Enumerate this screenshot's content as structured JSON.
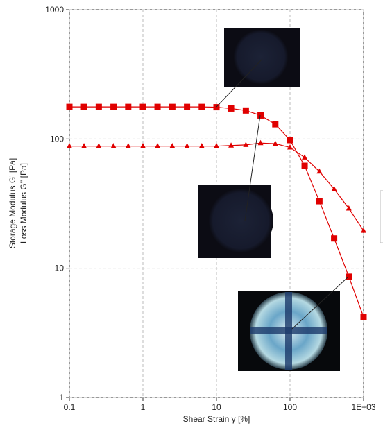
{
  "chart_data": {
    "type": "line",
    "xlabel": "Shear Strain γ [%]",
    "ylabels": [
      "Storage Modulus G' [Pa]",
      "Loss Modulus G'' [Pa]"
    ],
    "xscale": "log",
    "yscale": "log",
    "grid": true,
    "xlim": [
      0.1,
      1000
    ],
    "ylim": [
      1,
      1000
    ],
    "xticks": [
      0.1,
      1,
      10,
      100,
      {
        "value": 1000,
        "label": "1E+03"
      }
    ],
    "yticks": [
      1,
      10,
      100,
      1000
    ],
    "x": [
      0.1,
      0.158,
      0.251,
      0.398,
      0.631,
      1,
      1.58,
      2.51,
      3.98,
      6.31,
      10,
      15.8,
      25.1,
      39.8,
      63.1,
      100,
      158,
      251,
      398,
      631,
      1000
    ],
    "series": [
      {
        "marker": "square",
        "color": "#e00000",
        "values": [
          177,
          177,
          177,
          177,
          177,
          177,
          177,
          177,
          177,
          177,
          176,
          172,
          166,
          152,
          130,
          98,
          62,
          33,
          17,
          8.6,
          4.2
        ]
      },
      {
        "marker": "triangle",
        "color": "#e00000",
        "values": [
          88,
          88,
          88,
          88,
          88,
          88,
          88,
          88,
          88,
          88,
          88,
          89,
          90,
          93,
          92,
          86,
          72,
          56,
          41,
          29,
          19.5
        ]
      }
    ]
  }
}
